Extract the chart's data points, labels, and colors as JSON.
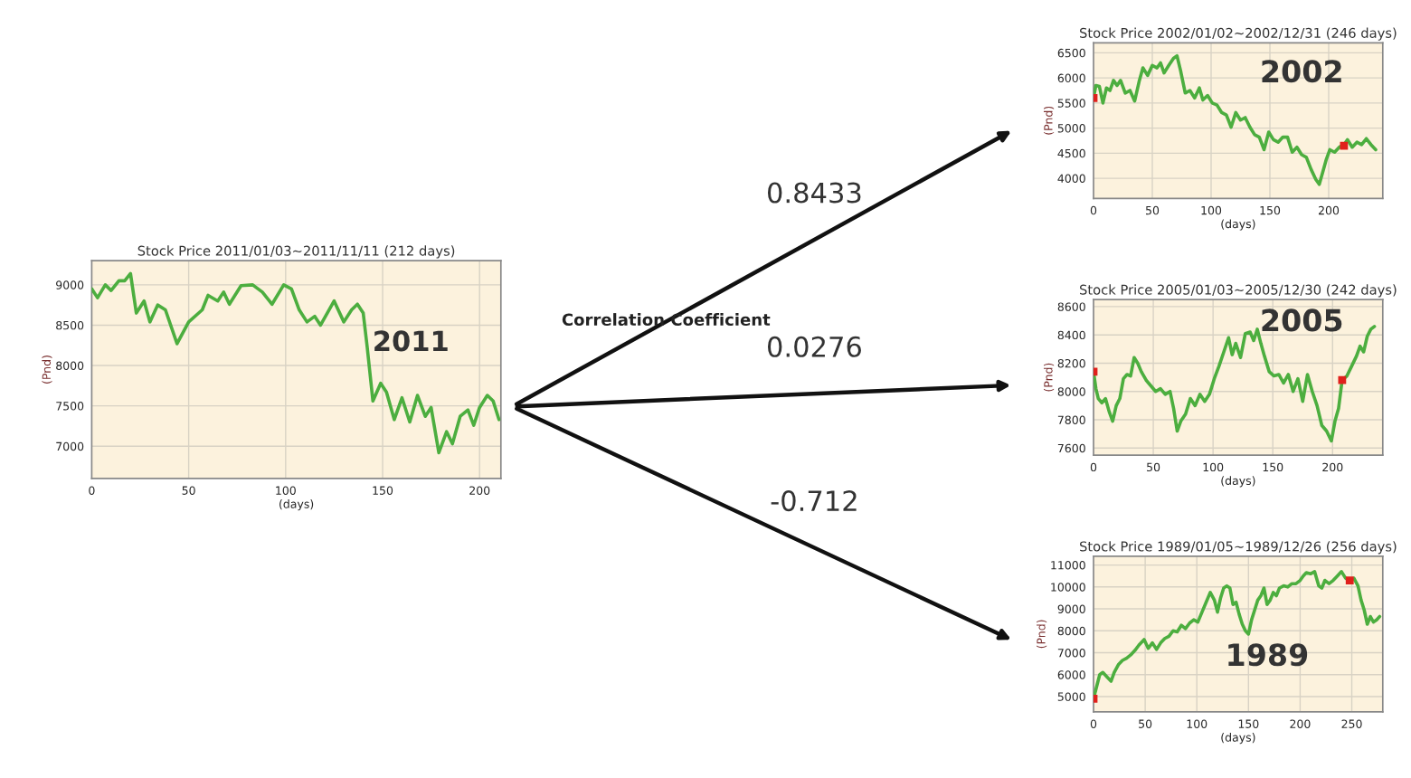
{
  "chart_data": [
    {
      "type": "line",
      "title": "Stock Price 2011/01/03~2011/11/11 (212 days)",
      "xlabel": "(days)",
      "ylabel": "(Pnd)",
      "xlim": [
        0,
        211
      ],
      "xticks": [
        0,
        50,
        100,
        150,
        200
      ],
      "ylim": [
        6600,
        9300
      ],
      "yticks": [
        7000,
        7500,
        8000,
        8500,
        9000
      ],
      "grid": true,
      "annotations": [
        "2011"
      ],
      "series": [
        {
          "color": "#4cae3f",
          "marker": "none",
          "x": [
            0,
            3,
            7,
            10,
            14,
            17,
            20,
            23,
            27,
            30,
            34,
            38,
            44,
            50,
            57,
            60,
            65,
            68,
            71,
            77,
            83,
            88,
            93,
            99,
            103,
            107,
            111,
            115,
            118,
            125,
            130,
            134,
            137,
            140,
            142,
            145,
            149,
            152,
            156,
            160,
            164,
            168,
            172,
            175,
            179,
            183,
            186,
            190,
            194,
            197,
            200,
            204,
            207,
            210
          ],
          "values": [
            8950,
            8840,
            9000,
            8930,
            9050,
            9050,
            9140,
            8650,
            8800,
            8540,
            8750,
            8690,
            8270,
            8540,
            8690,
            8870,
            8800,
            8910,
            8760,
            8990,
            9000,
            8910,
            8760,
            9000,
            8950,
            8690,
            8540,
            8610,
            8500,
            8800,
            8540,
            8690,
            8760,
            8650,
            8240,
            7560,
            7780,
            7670,
            7330,
            7600,
            7300,
            7630,
            7370,
            7480,
            6920,
            7180,
            7030,
            7370,
            7450,
            7260,
            7480,
            7630,
            7560,
            7330
          ]
        }
      ]
    },
    {
      "type": "line",
      "title": "Stock Price 2002/01/02~2002/12/31 (246 days)",
      "xlabel": "(days)",
      "ylabel": "(Pnd)",
      "xlim": [
        0,
        246
      ],
      "xticks": [
        0,
        50,
        100,
        150,
        200
      ],
      "ylim": [
        3600,
        6700
      ],
      "yticks": [
        4000,
        4500,
        5000,
        5500,
        6000,
        6500
      ],
      "grid": true,
      "annotations": [
        "2002"
      ],
      "series": [
        {
          "color": "#4cae3f",
          "marker": "none",
          "x": [
            0,
            2,
            5,
            8,
            11,
            14,
            17,
            20,
            23,
            27,
            31,
            35,
            39,
            42,
            46,
            50,
            54,
            57,
            60,
            64,
            68,
            71,
            74,
            78,
            82,
            86,
            90,
            93,
            97,
            101,
            105,
            109,
            113,
            117,
            121,
            125,
            129,
            133,
            137,
            141,
            145,
            149,
            153,
            157,
            161,
            165,
            169,
            173,
            177,
            181,
            185,
            189,
            192,
            195,
            198,
            201,
            205,
            209,
            213,
            216,
            220,
            224,
            228,
            232,
            236,
            240
          ],
          "values": [
            5600,
            5850,
            5830,
            5500,
            5800,
            5750,
            5950,
            5850,
            5950,
            5700,
            5750,
            5540,
            5950,
            6200,
            6050,
            6250,
            6200,
            6300,
            6100,
            6250,
            6390,
            6440,
            6150,
            5700,
            5750,
            5600,
            5800,
            5560,
            5650,
            5500,
            5460,
            5310,
            5260,
            5020,
            5310,
            5160,
            5210,
            5020,
            4870,
            4820,
            4570,
            4920,
            4770,
            4720,
            4820,
            4820,
            4520,
            4620,
            4470,
            4420,
            4180,
            3980,
            3880,
            4130,
            4380,
            4570,
            4520,
            4620,
            4670,
            4770,
            4620,
            4720,
            4670,
            4790,
            4670,
            4570
          ]
        },
        {
          "type": "scatter",
          "marker": "square",
          "color": "#e0201c",
          "x": [
            0,
            213
          ],
          "values": [
            5600,
            4650
          ]
        }
      ]
    },
    {
      "type": "line",
      "title": "Stock Price 2005/01/03~2005/12/30 (242 days)",
      "xlabel": "(days)",
      "ylabel": "(Pnd)",
      "xlim": [
        0,
        242
      ],
      "xticks": [
        0,
        50,
        100,
        150,
        200
      ],
      "ylim": [
        7550,
        8650
      ],
      "yticks": [
        7600,
        7800,
        8000,
        8200,
        8400,
        8600
      ],
      "grid": true,
      "annotations": [
        "2005"
      ],
      "series": [
        {
          "color": "#4cae3f",
          "marker": "none",
          "x": [
            0,
            2,
            4,
            7,
            10,
            13,
            16,
            19,
            22,
            25,
            28,
            31,
            34,
            37,
            40,
            44,
            48,
            52,
            56,
            60,
            64,
            67,
            70,
            73,
            77,
            81,
            85,
            89,
            93,
            97,
            101,
            105,
            109,
            113,
            116,
            119,
            123,
            127,
            131,
            134,
            137,
            140,
            143,
            147,
            151,
            155,
            159,
            163,
            167,
            171,
            175,
            179,
            183,
            187,
            191,
            195,
            199,
            202,
            205,
            208,
            212,
            216,
            220,
            223,
            226,
            229,
            232,
            235
          ],
          "values": [
            8140,
            8020,
            7950,
            7920,
            7950,
            7860,
            7790,
            7900,
            7950,
            8090,
            8120,
            8110,
            8240,
            8200,
            8140,
            8080,
            8040,
            8000,
            8020,
            7980,
            8000,
            7880,
            7720,
            7790,
            7840,
            7950,
            7900,
            7980,
            7930,
            7980,
            8090,
            8180,
            8280,
            8380,
            8260,
            8340,
            8240,
            8410,
            8420,
            8360,
            8440,
            8340,
            8250,
            8140,
            8110,
            8120,
            8060,
            8120,
            8000,
            8090,
            7930,
            8120,
            8000,
            7900,
            7760,
            7720,
            7650,
            7790,
            7880,
            8080,
            8110,
            8180,
            8250,
            8320,
            8280,
            8390,
            8440,
            8460
          ]
        },
        {
          "type": "scatter",
          "marker": "square",
          "color": "#e0201c",
          "x": [
            0,
            208
          ],
          "values": [
            8140,
            8080
          ]
        }
      ]
    },
    {
      "type": "line",
      "title": "Stock Price 1989/01/05~1989/12/26 (256 days)",
      "xlabel": "(days)",
      "ylabel": "(Pnd)",
      "xlim": [
        0,
        280
      ],
      "xticks": [
        0,
        50,
        100,
        150,
        200,
        250
      ],
      "ylim": [
        4300,
        11400
      ],
      "yticks": [
        5000,
        6000,
        7000,
        8000,
        9000,
        10000,
        11000
      ],
      "grid": true,
      "annotations": [
        "1989"
      ],
      "series": [
        {
          "color": "#4cae3f",
          "marker": "none",
          "x": [
            0,
            3,
            6,
            9,
            13,
            17,
            20,
            24,
            28,
            32,
            36,
            40,
            44,
            49,
            53,
            57,
            61,
            65,
            69,
            73,
            77,
            81,
            85,
            89,
            93,
            97,
            101,
            105,
            109,
            113,
            117,
            120,
            123,
            126,
            129,
            132,
            135,
            138,
            141,
            144,
            147,
            150,
            153,
            156,
            159,
            162,
            165,
            168,
            171,
            174,
            177,
            180,
            184,
            188,
            192,
            196,
            200,
            203,
            206,
            210,
            214,
            218,
            221,
            224,
            228,
            232,
            236,
            240,
            244,
            248,
            252,
            256,
            259,
            262,
            265,
            268,
            271,
            274,
            277
          ],
          "values": [
            4900,
            5450,
            6000,
            6100,
            5900,
            5700,
            6100,
            6450,
            6650,
            6750,
            6900,
            7100,
            7350,
            7600,
            7200,
            7450,
            7150,
            7450,
            7650,
            7750,
            8000,
            7950,
            8250,
            8100,
            8350,
            8500,
            8400,
            8850,
            9300,
            9750,
            9400,
            8850,
            9500,
            9950,
            10050,
            9950,
            9200,
            9300,
            8750,
            8300,
            8000,
            7850,
            8500,
            8950,
            9400,
            9600,
            9950,
            9200,
            9400,
            9750,
            9600,
            9950,
            10050,
            10000,
            10150,
            10150,
            10300,
            10500,
            10650,
            10600,
            10700,
            10050,
            9950,
            10300,
            10150,
            10300,
            10500,
            10700,
            10400,
            10300,
            10400,
            10050,
            9400,
            8950,
            8300,
            8650,
            8400,
            8500,
            8650
          ]
        },
        {
          "type": "scatter",
          "marker": "square",
          "color": "#e0201c",
          "x": [
            0,
            248
          ],
          "values": [
            4900,
            10300
          ]
        }
      ]
    },
    {
      "type": "other",
      "annotations": [
        "Correlation Coefficient",
        "0.8433",
        "0.0276",
        "-0.712"
      ]
    }
  ]
}
